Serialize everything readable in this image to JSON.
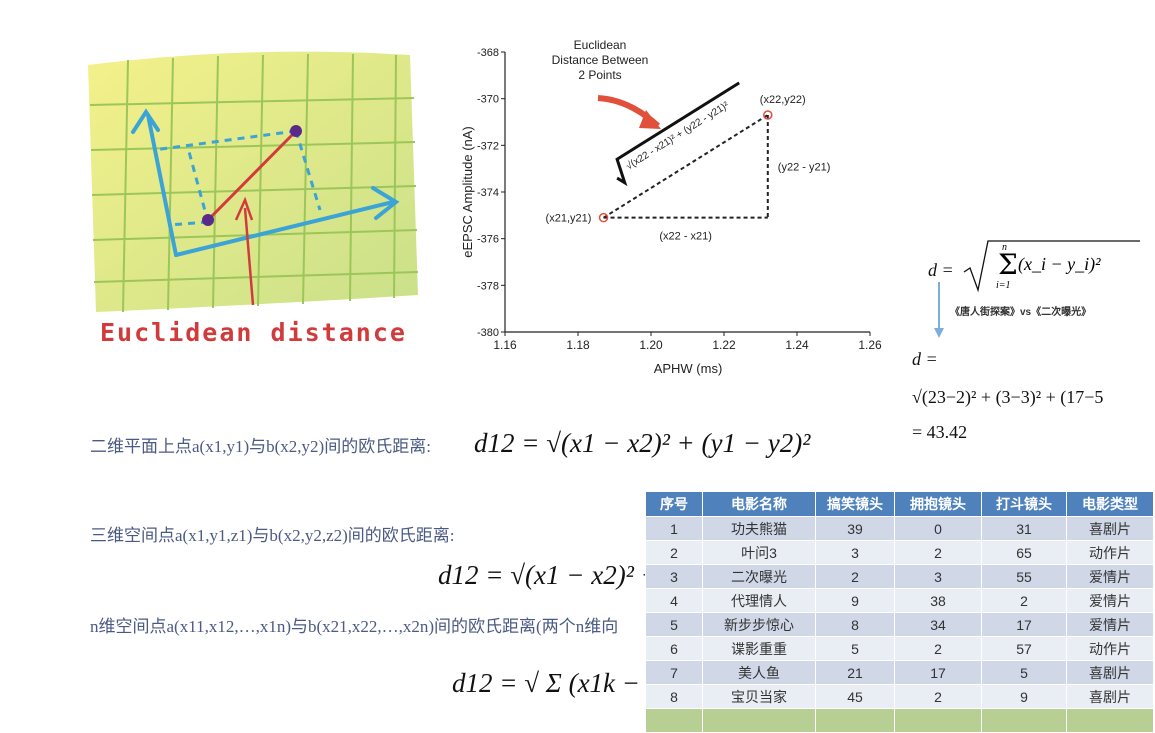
{
  "illustration": {
    "caption": "Euclidean distance"
  },
  "chart_data": {
    "type": "scatter",
    "title": "Euclidean Distance Between 2 Points",
    "title_lines": [
      "Euclidean",
      "Distance Between",
      "2 Points"
    ],
    "xlabel": "APHW (ms)",
    "ylabel": "eEPSC Amplitude (nA)",
    "xlim": [
      1.16,
      1.26
    ],
    "ylim": [
      -380,
      -368
    ],
    "xticks": [
      "1.16",
      "1.18",
      "1.20",
      "1.22",
      "1.24",
      "1.26"
    ],
    "yticks": [
      "-368",
      "-370",
      "-372",
      "-374",
      "-376",
      "-378",
      "-380"
    ],
    "points": [
      {
        "x": 1.187,
        "y": -375.1,
        "label": "(x21,y21)"
      },
      {
        "x": 1.232,
        "y": -370.7,
        "label": "(x22,y22)"
      }
    ],
    "annotations": {
      "hyp": "√(x22 - x21)² + (y22 - y21)²",
      "dx": "(x22 - x21)",
      "dy": "(y22 - y21)"
    }
  },
  "right_formula": {
    "lhs": "d =",
    "sum_expr": "(x_i − y_i)²",
    "sum_top": "n",
    "sum_bottom": "i=1",
    "caption": "《唐人街探案》vs《二次曝光》",
    "line2": "d =",
    "line3": "√(23−2)² + (3−3)² + (17−5",
    "result": "= 43.42"
  },
  "statements": {
    "s2d": "二维平面上点a(x1,y1)与b(x2,y2)间的欧氏距离:",
    "s3d": "三维空间点a(x1,y1,z1)与b(x2,y2,z2)间的欧氏距离:",
    "snd": "n维空间点a(x11,x12,…,x1n)与b(x21,x22,…,x2n)间的欧氏距离(两个n维向"
  },
  "formulas": {
    "f2d": "d12 = √(x1 − x2)² + (y1 − y2)²",
    "f3d": "d12 = √(x1 − x2)² +",
    "fnd": "d12 = √ Σ (x1k −"
  },
  "table": {
    "headers": [
      "序号",
      "电影名称",
      "搞笑镜头",
      "拥抱镜头",
      "打斗镜头",
      "电影类型"
    ],
    "rows": [
      [
        "1",
        "功夫熊猫",
        "39",
        "0",
        "31",
        "喜剧片"
      ],
      [
        "2",
        "叶问3",
        "3",
        "2",
        "65",
        "动作片"
      ],
      [
        "3",
        "二次曝光",
        "2",
        "3",
        "55",
        "爱情片"
      ],
      [
        "4",
        "代理情人",
        "9",
        "38",
        "2",
        "爱情片"
      ],
      [
        "5",
        "新步步惊心",
        "8",
        "34",
        "17",
        "爱情片"
      ],
      [
        "6",
        "谍影重重",
        "5",
        "2",
        "57",
        "动作片"
      ],
      [
        "7",
        "美人鱼",
        "21",
        "17",
        "5",
        "喜剧片"
      ],
      [
        "8",
        "宝贝当家",
        "45",
        "2",
        "9",
        "喜剧片"
      ]
    ]
  }
}
